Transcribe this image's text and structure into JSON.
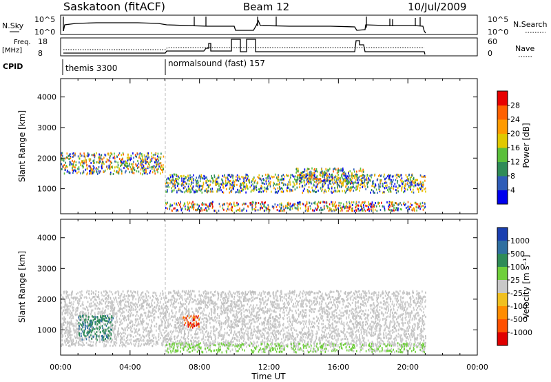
{
  "header": {
    "station": "Saskatoon (fitACF)",
    "beam": "Beam 12",
    "date": "10/Jul/2009"
  },
  "strips": {
    "nsky_label": "N.Sky",
    "nsky_ticks": [
      "10^5",
      "10^0"
    ],
    "nsearch_label": "N.Search",
    "freq_label_line1": "Freq.",
    "freq_label_line2": "[MHz]",
    "freq_ticks": [
      "18",
      "8"
    ],
    "nave_label": "Nave",
    "nave_ticks": [
      "60",
      "0"
    ],
    "cpid_label": "CPID",
    "cpid_segments": [
      {
        "name": "themis 3300",
        "start_hour": 0
      },
      {
        "name": "normalsound (fast) 157",
        "start_hour": 6
      }
    ]
  },
  "chart_data": [
    {
      "type": "heatmap",
      "title": "",
      "xlabel": "Time UT",
      "ylabel": "Slant Range [km]",
      "xlim": [
        0,
        24
      ],
      "ylim": [
        180,
        4600
      ],
      "x_ticks": [
        "00:00",
        "04:00",
        "08:00",
        "12:00",
        "16:00",
        "20:00",
        "00:00"
      ],
      "y_ticks": [
        1000,
        2000,
        3000,
        4000
      ],
      "data_end_hour": 21,
      "mode_change_hour": 6,
      "colorbar": {
        "label": "Power [dB]",
        "ticks": [
          "4",
          "8",
          "12",
          "16",
          "20",
          "24",
          "28"
        ],
        "colors": [
          "#0000ee",
          "#2e5cb8",
          "#2e8b57",
          "#5abf3a",
          "#e0c800",
          "#ff9a00",
          "#ff6000",
          "#e80000"
        ]
      },
      "features": [
        {
          "name": "pre-06 backscatter band",
          "hours": [
            0,
            5.9
          ],
          "range_km": [
            1500,
            2200
          ],
          "peak_db": 24
        },
        {
          "name": "near-range ground scatter",
          "hours": [
            6,
            21
          ],
          "range_km": [
            300,
            600
          ],
          "peak_db": 28
        },
        {
          "name": "mid band",
          "hours": [
            6,
            21
          ],
          "range_km": [
            900,
            1500
          ],
          "peak_db": 20
        },
        {
          "name": "afternoon band",
          "hours": [
            13.5,
            17.5
          ],
          "range_km": [
            1200,
            1700
          ],
          "peak_db": 24
        }
      ]
    },
    {
      "type": "heatmap",
      "title": "",
      "xlabel": "Time UT",
      "ylabel": "Slant Range [km]",
      "xlim": [
        0,
        24
      ],
      "ylim": [
        180,
        4600
      ],
      "x_ticks": [
        "00:00",
        "04:00",
        "08:00",
        "12:00",
        "16:00",
        "20:00",
        "00:00"
      ],
      "y_ticks": [
        1000,
        2000,
        3000,
        4000
      ],
      "data_end_hour": 21,
      "mode_change_hour": 6,
      "colorbar": {
        "label": "Velocity [m s⁻¹]",
        "ticks": [
          "1000",
          "500",
          "100",
          "25",
          "-25",
          "-100",
          "-500",
          "-1000"
        ],
        "colors": [
          "#1a3fb0",
          "#2f6fa0",
          "#2e8b57",
          "#6fcf3a",
          "#c8c8c8",
          "#f0c020",
          "#ff8c00",
          "#ff5000",
          "#e00000"
        ]
      },
      "features": [
        {
          "name": "near-zero velocity echoes",
          "hours": [
            0,
            21
          ],
          "range_km": [
            500,
            2300
          ],
          "velocity": "-25 to 25"
        },
        {
          "name": "positive velocity patch",
          "hours": [
            1,
            3
          ],
          "range_km": [
            700,
            1500
          ],
          "velocity": "100 to 500"
        },
        {
          "name": "negative velocity patch",
          "hours": [
            7,
            8
          ],
          "range_km": [
            1100,
            1500
          ],
          "velocity": "-500 to -1000"
        },
        {
          "name": "low positive near range",
          "hours": [
            6,
            21
          ],
          "range_km": [
            300,
            600
          ],
          "velocity": "25 to 100"
        }
      ]
    }
  ]
}
